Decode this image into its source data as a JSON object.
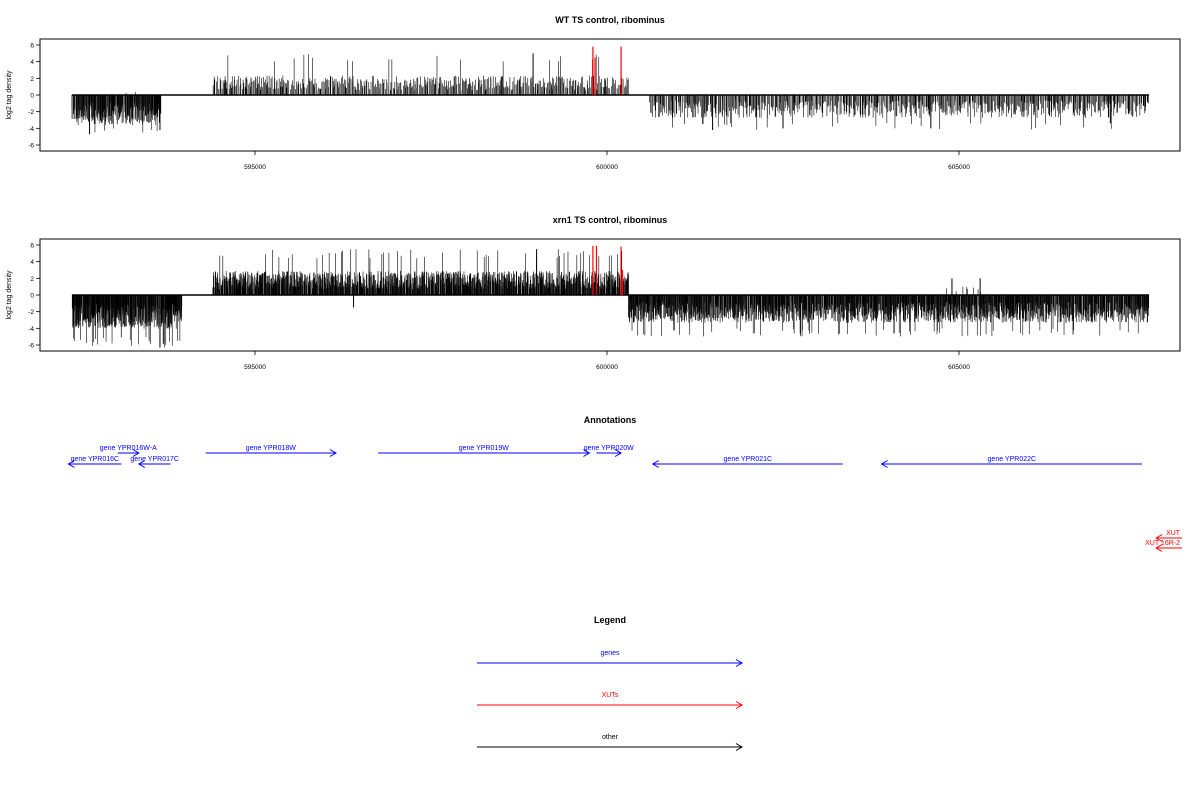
{
  "chart_data": [
    {
      "type": "bar",
      "title": "WT TS control, ribominus",
      "ylabel": "log2 tag density",
      "xlim": [
        592000,
        608000
      ],
      "ylim": [
        -6,
        6
      ],
      "x_ticks": [
        595000,
        600000,
        605000
      ],
      "x_tick_labels": [
        "595000",
        "600000",
        "605000"
      ],
      "y_ticks": [
        -6,
        -4,
        -2,
        0,
        2,
        4,
        6
      ],
      "y_tick_labels": [
        "-6",
        "-4",
        "-2",
        "0",
        "2",
        "4",
        "6"
      ],
      "series": [
        {
          "color": "#000000",
          "segments": [
            {
              "from": 592400,
              "to": 593650,
              "sign": -1,
              "mean": 2.5,
              "max": 4.8,
              "density": 3
            },
            {
              "from": 593100,
              "to": 593300,
              "sign": 1,
              "mean": 0.6,
              "max": 1.0,
              "density": 0.1
            },
            {
              "from": 593750,
              "to": 593850,
              "sign": 1,
              "mean": 0.6,
              "max": 1.0,
              "density": 0.1
            },
            {
              "from": 594400,
              "to": 600300,
              "sign": 1,
              "mean": 1.6,
              "max": 5.0,
              "density": 1.2
            },
            {
              "from": 600600,
              "to": 607700,
              "sign": -1,
              "mean": 1.9,
              "max": 4.2,
              "density": 1.3
            }
          ],
          "values": [
            {
              "x": 592650,
              "y": -4.7
            },
            {
              "x": 593650,
              "y": -4.2
            },
            {
              "x": 598950,
              "y": 5.0
            },
            {
              "x": 601500,
              "y": -4.2
            },
            {
              "x": 602500,
              "y": -4.0
            },
            {
              "x": 604600,
              "y": -4.0
            },
            {
              "x": 607150,
              "y": -3.4
            }
          ]
        },
        {
          "color": "#ff0000",
          "values": [
            {
              "x": 599800,
              "y": 5.8
            },
            {
              "x": 599830,
              "y": 4.5
            },
            {
              "x": 600200,
              "y": 5.8
            }
          ]
        }
      ]
    },
    {
      "type": "bar",
      "title": "xrn1 TS control, ribominus",
      "ylabel": "log2 tag density",
      "xlim": [
        592000,
        608000
      ],
      "ylim": [
        -6,
        6
      ],
      "x_ticks": [
        595000,
        600000,
        605000
      ],
      "x_tick_labels": [
        "595000",
        "600000",
        "605000"
      ],
      "y_ticks": [
        -6,
        -4,
        -2,
        0,
        2,
        4,
        6
      ],
      "y_tick_labels": [
        "-6",
        "-4",
        "-2",
        "0",
        "2",
        "4",
        "6"
      ],
      "series": [
        {
          "color": "#000000",
          "segments": [
            {
              "from": 592400,
              "to": 593950,
              "sign": -1,
              "mean": 2.8,
              "max": 6.3,
              "density": 4
            },
            {
              "from": 594400,
              "to": 600300,
              "sign": 1,
              "mean": 2.0,
              "max": 5.5,
              "density": 3
            },
            {
              "from": 600300,
              "to": 607700,
              "sign": -1,
              "mean": 2.3,
              "max": 5.0,
              "density": 3
            },
            {
              "from": 604800,
              "to": 605400,
              "sign": 1,
              "mean": 0.8,
              "max": 2.0,
              "density": 0.2
            }
          ],
          "values": [
            {
              "x": 593650,
              "y": -6.3
            },
            {
              "x": 596400,
              "y": -1.5
            },
            {
              "x": 599000,
              "y": 5.5
            },
            {
              "x": 604900,
              "y": 2.0
            },
            {
              "x": 605300,
              "y": 2.0
            }
          ]
        },
        {
          "color": "#ff0000",
          "values": [
            {
              "x": 599800,
              "y": 5.9
            },
            {
              "x": 599850,
              "y": 5.9
            },
            {
              "x": 600200,
              "y": 5.8
            },
            {
              "x": 600220,
              "y": 3.0
            }
          ]
        }
      ]
    },
    {
      "type": "annotation-track",
      "title": "Annotations",
      "xlim": [
        592000,
        608000
      ],
      "features": [
        {
          "label": "gene YPR016C",
          "start": 592350,
          "end": 593100,
          "strand": "-",
          "color": "#0000ff",
          "row": 1
        },
        {
          "label": "gene YPR016W-A",
          "start": 593050,
          "end": 593350,
          "strand": "+",
          "color": "#0000ff",
          "row": 0
        },
        {
          "label": "gene YPR017C",
          "start": 593350,
          "end": 593800,
          "strand": "-",
          "color": "#0000ff",
          "row": 1
        },
        {
          "label": "gene YPR018W",
          "start": 594300,
          "end": 596150,
          "strand": "+",
          "color": "#0000ff",
          "row": 0
        },
        {
          "label": "gene YPR019W",
          "start": 596750,
          "end": 599750,
          "strand": "+",
          "color": "#0000ff",
          "row": 0
        },
        {
          "label": "gene YPR020W",
          "start": 599850,
          "end": 600200,
          "strand": "+",
          "color": "#0000ff",
          "row": 0
        },
        {
          "label": "gene YPR021C",
          "start": 600650,
          "end": 603350,
          "strand": "-",
          "color": "#0000ff",
          "row": 1
        },
        {
          "label": "gene YPR022C",
          "start": 603900,
          "end": 607600,
          "strand": "-",
          "color": "#0000ff",
          "row": 1
        },
        {
          "label": "XUT",
          "start": 607800,
          "end": 608500,
          "strand": "-",
          "color": "#ff0000",
          "row": 2
        },
        {
          "label": "XUT 16R-2",
          "start": 607800,
          "end": 608500,
          "strand": "-",
          "color": "#ff0000",
          "row": 3
        }
      ]
    }
  ],
  "legend": {
    "title": "Legend",
    "items": [
      {
        "label": "genes",
        "color": "#0000ff"
      },
      {
        "label": "XUTs",
        "color": "#ff0000"
      },
      {
        "label": "other",
        "color": "#000000"
      }
    ]
  }
}
